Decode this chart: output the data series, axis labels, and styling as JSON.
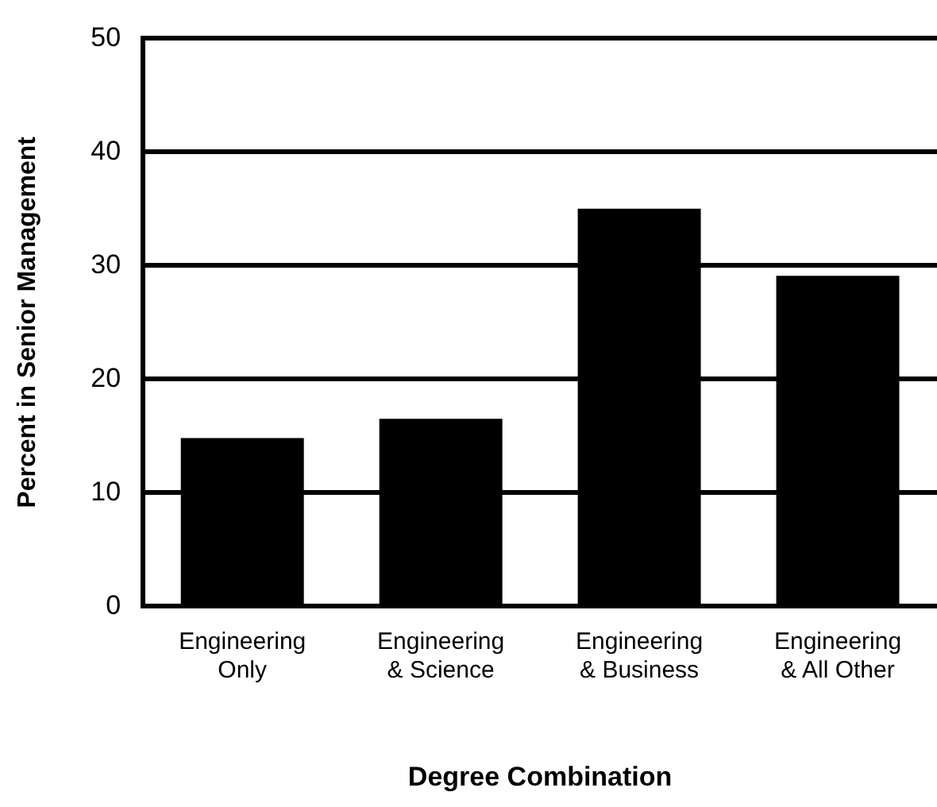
{
  "chart_data": {
    "type": "bar",
    "xlabel": "Degree Combination",
    "ylabel": "Percent in Senior Management",
    "categories": [
      "Engineering\nOnly",
      "Engineering\n& Science",
      "Engineering\n& Business",
      "Engineering\n& All Other"
    ],
    "values": [
      14.8,
      16.5,
      35,
      29.1
    ],
    "color": "#000000",
    "ylim": [
      0,
      50
    ],
    "yticks": [
      0,
      10,
      20,
      30,
      40,
      50
    ],
    "grid": "y",
    "legend": false
  }
}
